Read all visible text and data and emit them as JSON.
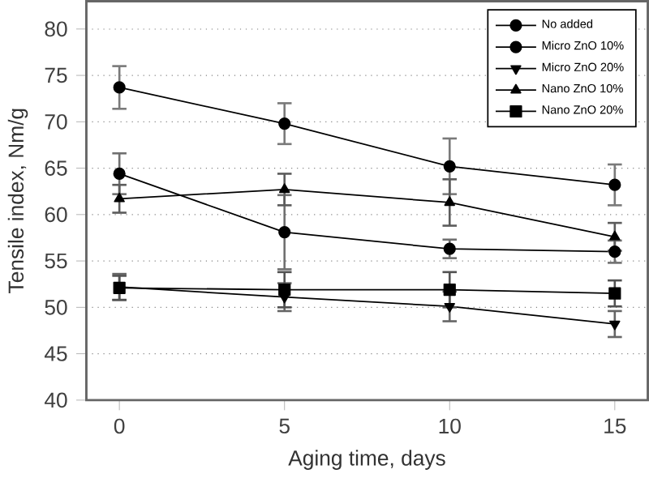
{
  "chart_data": {
    "type": "line",
    "xlabel": "Aging time, days",
    "ylabel": "Tensile index, Nm/g",
    "x": [
      0,
      5,
      10,
      15
    ],
    "xlim": [
      -1,
      16
    ],
    "ylim": [
      40,
      83
    ],
    "xticks": [
      0,
      5,
      10,
      15
    ],
    "yticks": [
      40,
      45,
      50,
      55,
      60,
      65,
      70,
      75,
      80
    ],
    "grid": "y",
    "legend": "top right",
    "line_style": "solid",
    "series": [
      {
        "name": "No added",
        "color": "#000000",
        "marker": "circle",
        "values": [
          73.7,
          69.8,
          65.2,
          63.2
        ],
        "errors": [
          2.3,
          2.2,
          3.0,
          2.2
        ]
      },
      {
        "name": "Micro ZnO 10%",
        "color": "#000000",
        "marker": "circle",
        "values": [
          64.4,
          58.1,
          56.3,
          56.0
        ],
        "errors": [
          2.2,
          4.0,
          1.0,
          1.2
        ]
      },
      {
        "name": "Micro ZnO 20%",
        "color": "#000000",
        "marker": "triangle down",
        "values": [
          52.2,
          51.1,
          50.1,
          48.2
        ],
        "errors": [
          1.4,
          1.5,
          1.6,
          1.4
        ]
      },
      {
        "name": "Nano ZnO 10%",
        "color": "#000000",
        "marker": "triangle",
        "values": [
          61.7,
          62.7,
          61.3,
          57.6
        ],
        "errors": [
          1.5,
          1.7,
          2.5,
          1.5
        ]
      },
      {
        "name": "Nano ZnO 20%",
        "color": "#000000",
        "marker": "square",
        "values": [
          52.1,
          51.9,
          51.9,
          51.5
        ],
        "errors": [
          1.3,
          1.9,
          1.9,
          1.4
        ]
      }
    ]
  }
}
